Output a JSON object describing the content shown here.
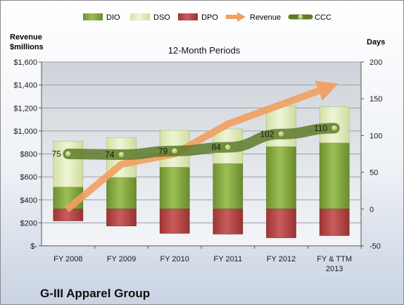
{
  "chart_data": {
    "type": "bar",
    "title": "12-Month Periods",
    "company": "G-III Apparel Group",
    "y_left_label": [
      "Revenue",
      "$millions"
    ],
    "y_right_label": "Days",
    "y_left_ticks": [
      "$-",
      "$200",
      "$400",
      "$600",
      "$800",
      "$1,000",
      "$1,200",
      "$1,400",
      "$1,600"
    ],
    "y_left_range": [
      0,
      1600
    ],
    "y_right_ticks": [
      "-50",
      "0",
      "50",
      "100",
      "150",
      "200"
    ],
    "y_right_range": [
      -50,
      200
    ],
    "categories": [
      [
        "FY 2008"
      ],
      [
        "FY 2009"
      ],
      [
        "FY 2010"
      ],
      [
        "FY 2011"
      ],
      [
        "FY 2012"
      ],
      [
        "FY & TTM",
        "2013"
      ]
    ],
    "legend": [
      "DIO",
      "DSO",
      "DPO",
      "Revenue",
      "CCC"
    ],
    "grid": true,
    "legend_position": "top",
    "series": [
      {
        "name": "DIO",
        "axis": "right",
        "values": [
          30,
          43,
          57,
          62,
          85,
          90
        ],
        "color": "#7fa13a"
      },
      {
        "name": "DSO",
        "axis": "right",
        "values": [
          62,
          54,
          50,
          47,
          55,
          49
        ],
        "color": "#e4eec4"
      },
      {
        "name": "DPO",
        "axis": "right",
        "values": [
          -16,
          -23,
          -33,
          -34,
          -39,
          -36
        ],
        "color": "#b84a4a"
      },
      {
        "name": "Revenue",
        "axis": "left",
        "values": [
          315,
          710,
          800,
          1060,
          1230,
          1400
        ],
        "color": "#f0a060"
      },
      {
        "name": "CCC",
        "axis": "right",
        "values": [
          75,
          74,
          79,
          84,
          102,
          110
        ],
        "color": "#5e7a2a"
      }
    ],
    "ccc_labels": [
      "75",
      "74",
      "79",
      "84",
      "102",
      "110"
    ]
  }
}
